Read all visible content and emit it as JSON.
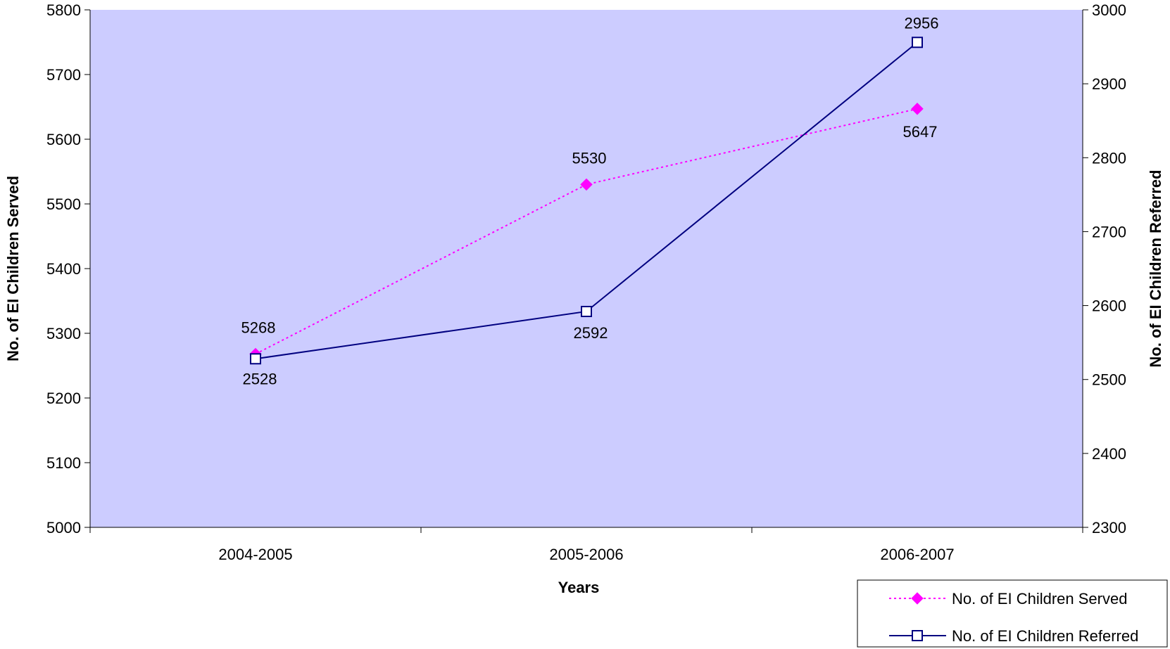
{
  "chart_data": {
    "type": "line",
    "categories": [
      "2004-2005",
      "2005-2006",
      "2006-2007"
    ],
    "xlabel": "Years",
    "ylabel_left": "No. of EI Children Served",
    "ylabel_right": "No. of EI Children Referred",
    "ylim_left": [
      5000,
      5800
    ],
    "ylim_right": [
      2300,
      3000
    ],
    "yticks_left": [
      5000,
      5100,
      5200,
      5300,
      5400,
      5500,
      5600,
      5700,
      5800
    ],
    "yticks_right": [
      2300,
      2400,
      2500,
      2600,
      2700,
      2800,
      2900,
      3000
    ],
    "grid": false,
    "legend_position": "bottom-right",
    "plot_background": "#ccccff",
    "series": [
      {
        "name": "No. of EI Children Served",
        "axis": "left",
        "values": [
          5268,
          5530,
          5647
        ],
        "labels": [
          "5268",
          "5530",
          "5647"
        ],
        "color": "#ff00ff",
        "line_style": "dotted",
        "marker": "diamond"
      },
      {
        "name": "No. of EI Children Referred",
        "axis": "right",
        "values": [
          2528,
          2592,
          2956
        ],
        "labels": [
          "2528",
          "2592",
          "2956"
        ],
        "color": "#000080",
        "line_style": "solid",
        "marker": "square"
      }
    ]
  }
}
